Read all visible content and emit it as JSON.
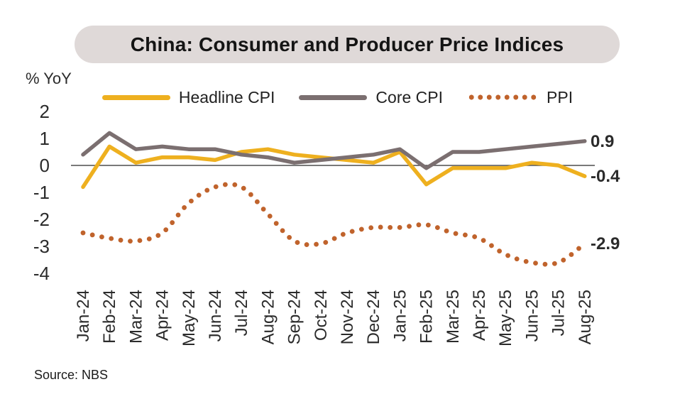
{
  "chart_data": {
    "type": "line",
    "title": "China: Consumer and Producer Price Indices",
    "ylabel": "% YoY",
    "xlabel": "",
    "source": "Source: NBS",
    "grid": false,
    "legend_position": "top",
    "x_categories": [
      "Jan-24",
      "Feb-24",
      "Mar-24",
      "Apr-24",
      "May-24",
      "Jun-24",
      "Jul-24",
      "Aug-24",
      "Sep-24",
      "Oct-24",
      "Nov-24",
      "Dec-24",
      "Jan-25",
      "Feb-25",
      "Mar-25",
      "Apr-25",
      "May-25",
      "Jun-25",
      "Jul-25",
      "Aug-25"
    ],
    "y_ticks": [
      2,
      1,
      0,
      -1,
      -2,
      -3,
      -4
    ],
    "ylim": [
      -4.6,
      2.4
    ],
    "series": [
      {
        "name": "Headline CPI",
        "style": "solid",
        "color": "#EEB01F",
        "end_label": "-0.4",
        "values": [
          -0.8,
          0.7,
          0.1,
          0.3,
          0.3,
          0.2,
          0.5,
          0.6,
          0.4,
          0.3,
          0.2,
          0.1,
          0.5,
          -0.7,
          -0.1,
          -0.1,
          -0.1,
          0.1,
          0.0,
          -0.4
        ]
      },
      {
        "name": "Core CPI",
        "style": "solid",
        "color": "#7B6F70",
        "end_label": "0.9",
        "values": [
          0.4,
          1.2,
          0.6,
          0.7,
          0.6,
          0.6,
          0.4,
          0.3,
          0.1,
          0.2,
          0.3,
          0.4,
          0.6,
          -0.1,
          0.5,
          0.5,
          0.6,
          0.7,
          0.8,
          0.9
        ]
      },
      {
        "name": "PPI",
        "style": "dotted",
        "color": "#C0632C",
        "end_label": "-2.9",
        "values": [
          -2.5,
          -2.7,
          -2.8,
          -2.5,
          -1.4,
          -0.8,
          -0.8,
          -1.8,
          -2.8,
          -2.9,
          -2.5,
          -2.3,
          -2.3,
          -2.2,
          -2.5,
          -2.7,
          -3.3,
          -3.6,
          -3.6,
          -2.9
        ]
      }
    ],
    "colors": {
      "title_pill_bg": "#DFD9D8",
      "zero_line": "#4d4d4d",
      "axis_text": "#2b2b2b"
    }
  }
}
